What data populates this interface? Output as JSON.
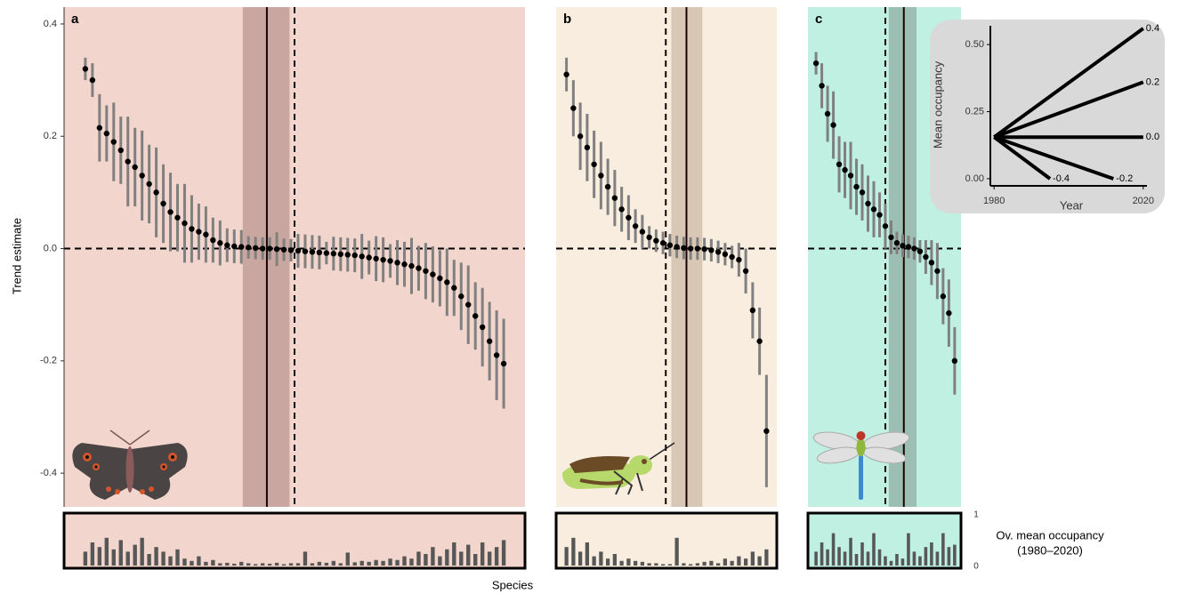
{
  "y_label": "Trend estimate",
  "x_label": "Species",
  "occupancy_label": [
    "Ov. mean occupancy",
    "(1980–2020)"
  ],
  "occupancy_ylim": [
    0,
    1
  ],
  "occupancy_ticks": [
    0,
    1
  ],
  "chart_data": [
    {
      "type": "errorbar",
      "title": "a",
      "background": "#f2d5cc",
      "band_color": "#c9a6a0",
      "color": "#000000",
      "error_color": "#808080",
      "bar_color": "#575757",
      "xlim": [
        -2,
        63
      ],
      "ylim": [
        -0.46,
        0.43
      ],
      "yticks": [
        0.4,
        0.2,
        {
          "value": 0,
          "label": "0.0"
        },
        -0.2,
        -0.4
      ],
      "reference_line": 0,
      "band": [
        23.2,
        29.8
      ],
      "median": 26.6,
      "dashed": 30.5,
      "values": [
        0.32,
        0.3,
        0.215,
        0.205,
        0.19,
        0.175,
        0.155,
        0.145,
        0.13,
        0.115,
        0.1,
        0.08,
        0.065,
        0.055,
        0.045,
        0.035,
        0.03,
        0.025,
        0.015,
        0.01,
        0.006,
        0.004,
        0.003,
        0.002,
        0.001,
        0,
        0,
        -0.001,
        -0.002,
        -0.003,
        -0.004,
        -0.005,
        -0.006,
        -0.007,
        -0.008,
        -0.009,
        -0.01,
        -0.011,
        -0.012,
        -0.014,
        -0.016,
        -0.018,
        -0.02,
        -0.022,
        -0.025,
        -0.028,
        -0.031,
        -0.035,
        -0.04,
        -0.046,
        -0.053,
        -0.06,
        -0.07,
        -0.085,
        -0.1,
        -0.12,
        -0.14,
        -0.165,
        -0.19,
        -0.205
      ],
      "errors": [
        0.02,
        0.03,
        0.06,
        0.05,
        0.07,
        0.06,
        0.08,
        0.07,
        0.08,
        0.07,
        0.08,
        0.07,
        0.07,
        0.06,
        0.07,
        0.06,
        0.05,
        0.05,
        0.04,
        0.04,
        0.03,
        0.03,
        0.03,
        0.02,
        0.02,
        0.02,
        0.02,
        0.03,
        0.02,
        0.02,
        0.03,
        0.03,
        0.03,
        0.03,
        0.02,
        0.03,
        0.03,
        0.03,
        0.03,
        0.04,
        0.03,
        0.04,
        0.04,
        0.03,
        0.04,
        0.04,
        0.05,
        0.04,
        0.05,
        0.05,
        0.05,
        0.06,
        0.05,
        0.06,
        0.07,
        0.06,
        0.07,
        0.07,
        0.08,
        0.08
      ],
      "occupancy": [
        0.3,
        0.5,
        0.4,
        0.6,
        0.35,
        0.55,
        0.3,
        0.45,
        0.6,
        0.25,
        0.4,
        0.3,
        0.2,
        0.35,
        0.15,
        0.1,
        0.2,
        0.08,
        0.12,
        0.05,
        0.06,
        0.04,
        0.08,
        0.05,
        0.03,
        0.05,
        0.04,
        0.06,
        0.03,
        0.05,
        0.05,
        0.3,
        0.05,
        0.08,
        0.06,
        0.1,
        0.05,
        0.28,
        0.07,
        0.1,
        0.08,
        0.12,
        0.1,
        0.15,
        0.12,
        0.2,
        0.15,
        0.3,
        0.25,
        0.4,
        0.2,
        0.35,
        0.5,
        0.3,
        0.45,
        0.25,
        0.5,
        0.3,
        0.4,
        0.55
      ]
    },
    {
      "type": "errorbar",
      "title": "b",
      "background": "#f8eddf",
      "band_color": "#d9c7b5",
      "color": "#000000",
      "error_color": "#808080",
      "bar_color": "#575757",
      "xlim": [
        -0.5,
        31.5
      ],
      "ylim": [
        -0.46,
        0.43
      ],
      "reference_line": 0,
      "band": [
        16.2,
        20.7
      ],
      "median": 18.4,
      "dashed": 15.4,
      "values": [
        0.31,
        0.25,
        0.2,
        0.18,
        0.15,
        0.13,
        0.11,
        0.09,
        0.07,
        0.055,
        0.04,
        0.03,
        0.02,
        0.014,
        0.01,
        0.006,
        0.003,
        0.001,
        0,
        0,
        -0.001,
        -0.003,
        -0.006,
        -0.01,
        -0.015,
        -0.02,
        -0.04,
        -0.11,
        -0.165,
        -0.325
      ],
      "errors": [
        0.03,
        0.05,
        0.06,
        0.06,
        0.06,
        0.06,
        0.05,
        0.05,
        0.04,
        0.04,
        0.03,
        0.03,
        0.02,
        0.02,
        0.02,
        0.02,
        0.02,
        0.02,
        0.02,
        0.02,
        0.02,
        0.02,
        0.02,
        0.02,
        0.02,
        0.03,
        0.04,
        0.05,
        0.06,
        0.1
      ],
      "occupancy": [
        0.4,
        0.6,
        0.3,
        0.5,
        0.2,
        0.3,
        0.15,
        0.25,
        0.1,
        0.15,
        0.1,
        0.08,
        0.05,
        0.05,
        0.03,
        0.03,
        0.6,
        0.05,
        0.03,
        0.05,
        0.08,
        0.1,
        0.05,
        0.15,
        0.1,
        0.2,
        0.15,
        0.3,
        0.2,
        0.35
      ]
    },
    {
      "type": "errorbar",
      "title": "c",
      "background": "#bff0e2",
      "band_color": "#9dbfb3",
      "color": "#000000",
      "error_color": "#808080",
      "bar_color": "#575757",
      "xlim": [
        -0.4,
        26.1
      ],
      "ylim": [
        -0.46,
        0.43
      ],
      "reference_line": 0,
      "band": [
        13.6,
        18.4
      ],
      "median": 16.2,
      "dashed": 13,
      "values": [
        0.33,
        0.29,
        0.24,
        0.22,
        0.15,
        0.14,
        0.13,
        0.11,
        0.1,
        0.08,
        0.07,
        0.06,
        0.04,
        0.02,
        0.01,
        0.005,
        0.003,
        0,
        -0.005,
        -0.015,
        -0.025,
        -0.04,
        -0.085,
        -0.115,
        -0.2
      ],
      "errors": [
        0.02,
        0.04,
        0.05,
        0.06,
        0.05,
        0.05,
        0.06,
        0.05,
        0.05,
        0.05,
        0.05,
        0.04,
        0.04,
        0.03,
        0.02,
        0.02,
        0.02,
        0.02,
        0.02,
        0.03,
        0.04,
        0.05,
        0.05,
        0.06,
        0.06
      ],
      "occupancy": [
        0.3,
        0.5,
        0.35,
        0.7,
        0.4,
        0.3,
        0.6,
        0.25,
        0.5,
        0.3,
        0.7,
        0.35,
        0.2,
        0.1,
        0.25,
        0.15,
        0.7,
        0.3,
        0.2,
        0.4,
        0.5,
        0.3,
        0.7,
        0.4,
        0.45
      ]
    },
    {
      "type": "line",
      "xlabel": "Year",
      "ylabel": "Mean occupancy",
      "background": "#d9d9d9",
      "color": "#000000",
      "xlim": [
        1979,
        2021
      ],
      "ylim": [
        -0.02,
        0.57
      ],
      "xticks": [
        1980,
        2020
      ],
      "yticks": [
        {
          "value": 0,
          "label": "0.00"
        },
        0.25,
        {
          "value": 0.5,
          "label": "0.50"
        }
      ],
      "series": [
        {
          "name": "0.4",
          "x": [
            1980,
            2020
          ],
          "values": [
            0.155,
            0.56
          ]
        },
        {
          "name": "0.2",
          "x": [
            1980,
            2020
          ],
          "values": [
            0.155,
            0.36
          ]
        },
        {
          "name": "0.0",
          "x": [
            1980,
            2020
          ],
          "values": [
            0.155,
            0.155
          ]
        },
        {
          "name": "-0.2",
          "x": [
            1980,
            2012
          ],
          "values": [
            0.155,
            0
          ]
        },
        {
          "name": "-0.4",
          "x": [
            1980,
            1995
          ],
          "values": [
            0.155,
            0
          ]
        }
      ]
    }
  ]
}
